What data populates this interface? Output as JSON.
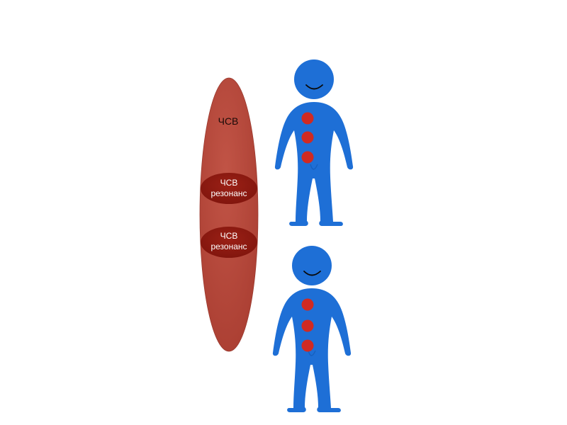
{
  "field": {
    "label": "ЧСВ",
    "color": "#b4463a"
  },
  "resonance_badges": [
    {
      "line1": "ЧСВ",
      "line2": "резонанс"
    },
    {
      "line1": "ЧСВ",
      "line2": "резонанс"
    }
  ],
  "colors": {
    "badge": "#8e1a10",
    "figure": "#1e6fd6",
    "dots": "#d02a22",
    "smile": "#0a0a0a"
  },
  "figures": [
    {
      "name": "person-top",
      "dots": 3
    },
    {
      "name": "person-bottom",
      "dots": 3
    }
  ]
}
